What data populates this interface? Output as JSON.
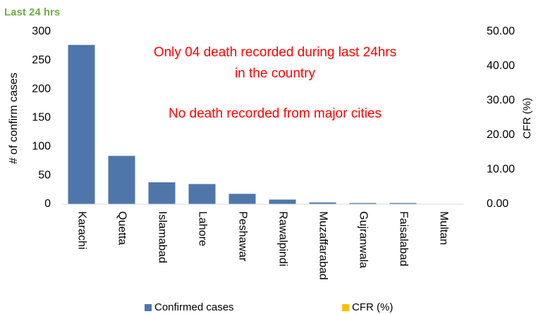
{
  "chart_data": {
    "type": "bar",
    "title": "Last 24 hrs",
    "ylabel": "# of confirm cases",
    "y2label": "CFR (%)",
    "annotations": [
      "Only 04 death recorded during last 24hrs",
      "in the country",
      "No death recorded from major cities"
    ],
    "categories": [
      "Karachi",
      "Quetta",
      "Islamabad",
      "Lahore",
      "Peshawar",
      "Rawalpindi",
      "Muzaffarabad",
      "Gujranwala",
      "Faisalabad",
      "Multan"
    ],
    "series": [
      {
        "name": "Confirmed cases",
        "color": "#4f76aa",
        "values": [
          277,
          84,
          38,
          35,
          18,
          8,
          3,
          2,
          2,
          0
        ]
      },
      {
        "name": "CFR (%)",
        "color": "#ffc000",
        "axis": "y2",
        "values": [
          0,
          0,
          0,
          0,
          0,
          0,
          0,
          0,
          0,
          0
        ]
      }
    ],
    "ylim": [
      0,
      300
    ],
    "yticks": [
      0,
      50,
      100,
      150,
      200,
      250,
      300
    ],
    "y2lim": [
      0,
      50
    ],
    "y2ticks": [
      {
        "value": 0,
        "label": "0.00"
      },
      {
        "value": 10,
        "label": "10.00"
      },
      {
        "value": 20,
        "label": "20.00"
      },
      {
        "value": 30,
        "label": "30.00"
      },
      {
        "value": 40,
        "label": "40.00"
      },
      {
        "value": 50,
        "label": "50.00"
      }
    ],
    "legend": "bottom"
  }
}
